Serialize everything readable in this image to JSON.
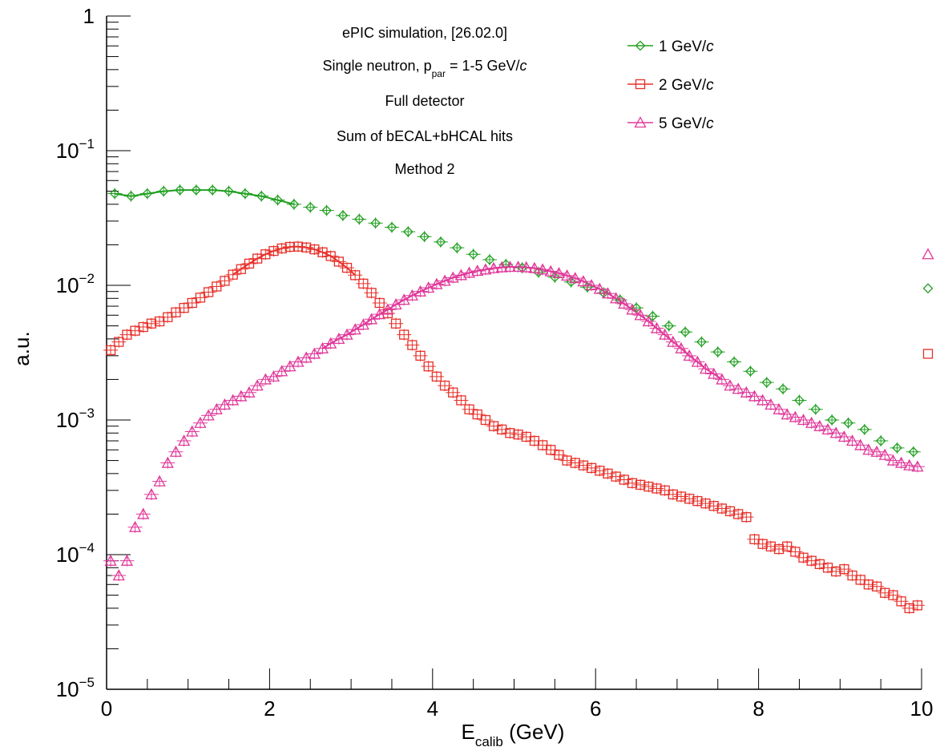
{
  "chart_data": {
    "type": "scatter",
    "title": "",
    "xlabel_main": "E",
    "xlabel_sub": "calib",
    "xlabel_unit": " (GeV)",
    "ylabel": "a.u.",
    "xlim": [
      0,
      10
    ],
    "ylim": [
      1e-05,
      1
    ],
    "yscale": "log",
    "x_ticks": [
      "0",
      "2",
      "4",
      "6",
      "8",
      "10"
    ],
    "y_ticks": [
      {
        "base": "10",
        "exp": "−5"
      },
      {
        "base": "10",
        "exp": "−4"
      },
      {
        "base": "10",
        "exp": "−3"
      },
      {
        "base": "10",
        "exp": "−2"
      },
      {
        "base": "10",
        "exp": "−1"
      },
      {
        "base": "1",
        "exp": ""
      }
    ],
    "grid": false,
    "legend_position": "top-right",
    "annotations": {
      "line1": "ePIC simulation, [26.02.0]",
      "line2_pre": "Single neutron, p",
      "line2_sub": "par",
      "line2_post": " = 1-5 GeV/",
      "line2_italic": "c",
      "line3": "Full detector",
      "line4": "Sum of bECAL+bHCAL hits",
      "line5": "Method 2"
    },
    "series": [
      {
        "name": "1 GeV/",
        "name_italic": "c",
        "marker": "diamond",
        "color": "#22a022",
        "fit_range": [
          0.1,
          2.45
        ],
        "points": [
          [
            0.1,
            0.048
          ],
          [
            0.3,
            0.046
          ],
          [
            0.5,
            0.048
          ],
          [
            0.7,
            0.05
          ],
          [
            0.9,
            0.051
          ],
          [
            1.1,
            0.051
          ],
          [
            1.3,
            0.051
          ],
          [
            1.5,
            0.05
          ],
          [
            1.7,
            0.048
          ],
          [
            1.9,
            0.046
          ],
          [
            2.1,
            0.043
          ],
          [
            2.3,
            0.04
          ],
          [
            2.5,
            0.038
          ],
          [
            2.7,
            0.036
          ],
          [
            2.9,
            0.033
          ],
          [
            3.1,
            0.031
          ],
          [
            3.3,
            0.029
          ],
          [
            3.5,
            0.027
          ],
          [
            3.7,
            0.025
          ],
          [
            3.9,
            0.023
          ],
          [
            4.1,
            0.021
          ],
          [
            4.3,
            0.019
          ],
          [
            4.5,
            0.017
          ],
          [
            4.7,
            0.0155
          ],
          [
            4.9,
            0.0143
          ],
          [
            5.1,
            0.0135
          ],
          [
            5.3,
            0.0125
          ],
          [
            5.5,
            0.0115
          ],
          [
            5.7,
            0.0106
          ],
          [
            5.9,
            0.0097
          ],
          [
            6.1,
            0.0088
          ],
          [
            6.3,
            0.0078
          ],
          [
            6.5,
            0.0068
          ],
          [
            6.7,
            0.0059
          ],
          [
            6.9,
            0.005
          ],
          [
            7.1,
            0.0045
          ],
          [
            7.3,
            0.0038
          ],
          [
            7.5,
            0.0032
          ],
          [
            7.7,
            0.0027
          ],
          [
            7.9,
            0.0023
          ],
          [
            8.1,
            0.0019
          ],
          [
            8.3,
            0.0017
          ],
          [
            8.5,
            0.0014
          ],
          [
            8.7,
            0.0012
          ],
          [
            8.9,
            0.001
          ],
          [
            9.1,
            0.00095
          ],
          [
            9.3,
            0.00085
          ],
          [
            9.5,
            0.0007
          ],
          [
            9.7,
            0.00062
          ],
          [
            9.9,
            0.00058
          ]
        ],
        "overflow": 0.0095
      },
      {
        "name": "2 GeV/",
        "name_italic": "c",
        "marker": "square",
        "color": "#e8302a",
        "fit_range": [
          1.5,
          3.1
        ],
        "points": [
          [
            0.05,
            0.0033
          ],
          [
            0.15,
            0.0038
          ],
          [
            0.25,
            0.0043
          ],
          [
            0.35,
            0.0046
          ],
          [
            0.45,
            0.0049
          ],
          [
            0.55,
            0.0052
          ],
          [
            0.65,
            0.0054
          ],
          [
            0.75,
            0.0058
          ],
          [
            0.85,
            0.0063
          ],
          [
            0.95,
            0.0068
          ],
          [
            1.05,
            0.0074
          ],
          [
            1.15,
            0.0081
          ],
          [
            1.25,
            0.0089
          ],
          [
            1.35,
            0.0098
          ],
          [
            1.45,
            0.0108
          ],
          [
            1.55,
            0.012
          ],
          [
            1.65,
            0.0132
          ],
          [
            1.75,
            0.0145
          ],
          [
            1.85,
            0.0158
          ],
          [
            1.95,
            0.017
          ],
          [
            2.05,
            0.018
          ],
          [
            2.15,
            0.0188
          ],
          [
            2.25,
            0.0193
          ],
          [
            2.35,
            0.0194
          ],
          [
            2.45,
            0.0191
          ],
          [
            2.55,
            0.0185
          ],
          [
            2.65,
            0.0176
          ],
          [
            2.75,
            0.0165
          ],
          [
            2.85,
            0.015
          ],
          [
            2.95,
            0.0135
          ],
          [
            3.05,
            0.0119
          ],
          [
            3.15,
            0.0103
          ],
          [
            3.25,
            0.0088
          ],
          [
            3.35,
            0.0074
          ],
          [
            3.45,
            0.0062
          ],
          [
            3.55,
            0.0052
          ],
          [
            3.65,
            0.0043
          ],
          [
            3.75,
            0.0036
          ],
          [
            3.85,
            0.003
          ],
          [
            3.95,
            0.0025
          ],
          [
            4.05,
            0.0021
          ],
          [
            4.15,
            0.0018
          ],
          [
            4.25,
            0.0016
          ],
          [
            4.35,
            0.0014
          ],
          [
            4.45,
            0.0012
          ],
          [
            4.55,
            0.0011
          ],
          [
            4.65,
            0.001
          ],
          [
            4.75,
            0.0009
          ],
          [
            4.85,
            0.00085
          ],
          [
            4.95,
            0.0008
          ],
          [
            5.05,
            0.00078
          ],
          [
            5.15,
            0.00075
          ],
          [
            5.25,
            0.0007
          ],
          [
            5.35,
            0.00065
          ],
          [
            5.45,
            0.0006
          ],
          [
            5.55,
            0.00055
          ],
          [
            5.65,
            0.0005
          ],
          [
            5.75,
            0.00048
          ],
          [
            5.85,
            0.00046
          ],
          [
            5.95,
            0.00044
          ],
          [
            6.05,
            0.00042
          ],
          [
            6.15,
            0.0004
          ],
          [
            6.25,
            0.00038
          ],
          [
            6.35,
            0.00036
          ],
          [
            6.45,
            0.00034
          ],
          [
            6.55,
            0.00033
          ],
          [
            6.65,
            0.00032
          ],
          [
            6.75,
            0.00031
          ],
          [
            6.85,
            0.0003
          ],
          [
            6.95,
            0.00028
          ],
          [
            7.05,
            0.00027
          ],
          [
            7.15,
            0.00026
          ],
          [
            7.25,
            0.00025
          ],
          [
            7.35,
            0.00024
          ],
          [
            7.45,
            0.00023
          ],
          [
            7.55,
            0.00022
          ],
          [
            7.65,
            0.00021
          ],
          [
            7.75,
            0.0002
          ],
          [
            7.85,
            0.00019
          ],
          [
            7.95,
            0.00013
          ],
          [
            8.05,
            0.00012
          ],
          [
            8.15,
            0.000115
          ],
          [
            8.25,
            0.00011
          ],
          [
            8.35,
            0.000115
          ],
          [
            8.45,
            0.000105
          ],
          [
            8.55,
            9.5e-05
          ],
          [
            8.65,
            9e-05
          ],
          [
            8.75,
            8.5e-05
          ],
          [
            8.85,
            8e-05
          ],
          [
            8.95,
            7.5e-05
          ],
          [
            9.05,
            7.8e-05
          ],
          [
            9.15,
            7e-05
          ],
          [
            9.25,
            6.5e-05
          ],
          [
            9.35,
            6e-05
          ],
          [
            9.45,
            5.8e-05
          ],
          [
            9.55,
            5.2e-05
          ],
          [
            9.65,
            5e-05
          ],
          [
            9.75,
            4.5e-05
          ],
          [
            9.85,
            4e-05
          ],
          [
            9.95,
            4.2e-05
          ]
        ],
        "overflow": 0.0031
      },
      {
        "name": "5 GeV/",
        "name_italic": "c",
        "marker": "triangle",
        "color": "#e0399a",
        "fit_range": [
          2.6,
          7.6
        ],
        "points": [
          [
            0.05,
            9e-05
          ],
          [
            0.15,
            7e-05
          ],
          [
            0.25,
            9e-05
          ],
          [
            0.35,
            0.00016
          ],
          [
            0.45,
            0.0002
          ],
          [
            0.55,
            0.00028
          ],
          [
            0.65,
            0.00035
          ],
          [
            0.75,
            0.00048
          ],
          [
            0.85,
            0.00058
          ],
          [
            0.95,
            0.0007
          ],
          [
            1.05,
            0.00082
          ],
          [
            1.15,
            0.00095
          ],
          [
            1.25,
            0.00108
          ],
          [
            1.35,
            0.0012
          ],
          [
            1.45,
            0.0013
          ],
          [
            1.55,
            0.0014
          ],
          [
            1.65,
            0.0015
          ],
          [
            1.75,
            0.0016
          ],
          [
            1.85,
            0.0018
          ],
          [
            1.95,
            0.002
          ],
          [
            2.05,
            0.0021
          ],
          [
            2.15,
            0.0023
          ],
          [
            2.25,
            0.0025
          ],
          [
            2.35,
            0.0027
          ],
          [
            2.45,
            0.0029
          ],
          [
            2.55,
            0.0031
          ],
          [
            2.65,
            0.0034
          ],
          [
            2.75,
            0.0037
          ],
          [
            2.85,
            0.004
          ],
          [
            2.95,
            0.0043
          ],
          [
            3.05,
            0.0047
          ],
          [
            3.15,
            0.0051
          ],
          [
            3.25,
            0.0056
          ],
          [
            3.35,
            0.0061
          ],
          [
            3.45,
            0.0066
          ],
          [
            3.55,
            0.0072
          ],
          [
            3.65,
            0.0078
          ],
          [
            3.75,
            0.0084
          ],
          [
            3.85,
            0.009
          ],
          [
            3.95,
            0.0096
          ],
          [
            4.05,
            0.0102
          ],
          [
            4.15,
            0.0108
          ],
          [
            4.25,
            0.0114
          ],
          [
            4.35,
            0.0119
          ],
          [
            4.45,
            0.0124
          ],
          [
            4.55,
            0.0128
          ],
          [
            4.65,
            0.0131
          ],
          [
            4.75,
            0.0134
          ],
          [
            4.85,
            0.0136
          ],
          [
            4.95,
            0.0137
          ],
          [
            5.05,
            0.0137
          ],
          [
            5.15,
            0.0136
          ],
          [
            5.25,
            0.0134
          ],
          [
            5.35,
            0.0131
          ],
          [
            5.45,
            0.0127
          ],
          [
            5.55,
            0.0123
          ],
          [
            5.65,
            0.0118
          ],
          [
            5.75,
            0.0113
          ],
          [
            5.85,
            0.0107
          ],
          [
            5.95,
            0.01
          ],
          [
            6.05,
            0.0094
          ],
          [
            6.15,
            0.0087
          ],
          [
            6.25,
            0.008
          ],
          [
            6.35,
            0.0073
          ],
          [
            6.45,
            0.0066
          ],
          [
            6.55,
            0.006
          ],
          [
            6.65,
            0.0054
          ],
          [
            6.75,
            0.0048
          ],
          [
            6.85,
            0.0043
          ],
          [
            6.95,
            0.0038
          ],
          [
            7.05,
            0.0034
          ],
          [
            7.15,
            0.003
          ],
          [
            7.25,
            0.0027
          ],
          [
            7.35,
            0.0024
          ],
          [
            7.45,
            0.0022
          ],
          [
            7.55,
            0.002
          ],
          [
            7.65,
            0.0018
          ],
          [
            7.75,
            0.0017
          ],
          [
            7.85,
            0.0016
          ],
          [
            7.95,
            0.0015
          ],
          [
            8.05,
            0.0014
          ],
          [
            8.15,
            0.0013
          ],
          [
            8.25,
            0.0012
          ],
          [
            8.35,
            0.0011
          ],
          [
            8.45,
            0.00105
          ],
          [
            8.55,
            0.001
          ],
          [
            8.65,
            0.00095
          ],
          [
            8.75,
            0.0009
          ],
          [
            8.85,
            0.00085
          ],
          [
            8.95,
            0.0008
          ],
          [
            9.05,
            0.00075
          ],
          [
            9.15,
            0.0007
          ],
          [
            9.25,
            0.00065
          ],
          [
            9.35,
            0.0006
          ],
          [
            9.45,
            0.00058
          ],
          [
            9.55,
            0.00055
          ],
          [
            9.65,
            0.0005
          ],
          [
            9.75,
            0.00048
          ],
          [
            9.85,
            0.00046
          ],
          [
            9.95,
            0.00045
          ]
        ],
        "overflow": 0.017
      }
    ]
  }
}
